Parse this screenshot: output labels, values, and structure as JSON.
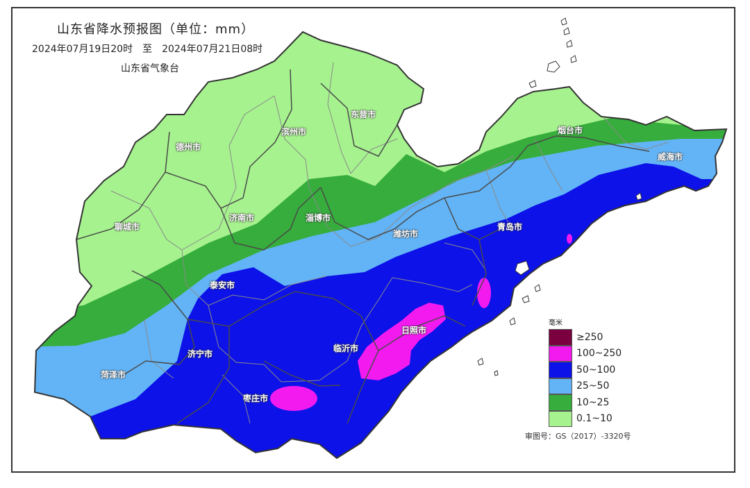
{
  "header": {
    "title": "山东省降水预报图（单位：mm）",
    "period_start": "2024年07月19日20时",
    "period_sep": "至",
    "period_end": "2024年07月21日08时",
    "issuer": "山东省气象台"
  },
  "cities": [
    {
      "id": "dezhou",
      "name": "德州市"
    },
    {
      "id": "binzhou",
      "name": "滨州市"
    },
    {
      "id": "dongying",
      "name": "东营市"
    },
    {
      "id": "yantai",
      "name": "烟台市"
    },
    {
      "id": "weihai",
      "name": "威海市"
    },
    {
      "id": "liaocheng",
      "name": "聊城市"
    },
    {
      "id": "jinan",
      "name": "济南市"
    },
    {
      "id": "zibo",
      "name": "淄博市"
    },
    {
      "id": "weifang",
      "name": "潍坊市"
    },
    {
      "id": "qingdao",
      "name": "青岛市"
    },
    {
      "id": "taian",
      "name": "泰安市"
    },
    {
      "id": "rizhao",
      "name": "日照市"
    },
    {
      "id": "jining",
      "name": "济宁市"
    },
    {
      "id": "linyi",
      "name": "临沂市"
    },
    {
      "id": "heze",
      "name": "菏泽市"
    },
    {
      "id": "zaozhuang",
      "name": "枣庄市"
    }
  ],
  "legend": {
    "unit": "毫米",
    "items": [
      {
        "label": "≥250",
        "color": "#7a0040"
      },
      {
        "label": "100~250",
        "color": "#f31af0"
      },
      {
        "label": "50~100",
        "color": "#0c12e8"
      },
      {
        "label": "25~50",
        "color": "#62b4f6"
      },
      {
        "label": "10~25",
        "color": "#36ad3c"
      },
      {
        "label": "0.1~10",
        "color": "#a6f28e"
      }
    ]
  },
  "approval": "审图号：GS（2017）-3320号",
  "colors": {
    "light_green": "#a6f28e",
    "green": "#36ad3c",
    "light_blue": "#62b4f6",
    "blue": "#0c12e8",
    "magenta": "#f31af0"
  }
}
